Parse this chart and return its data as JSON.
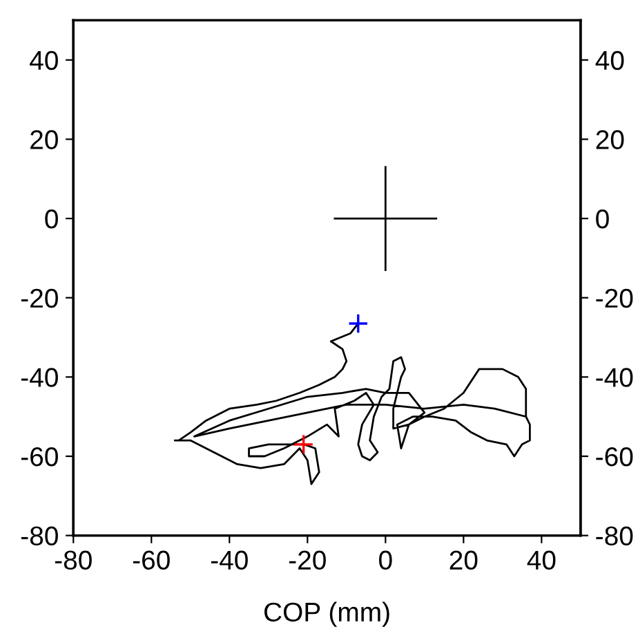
{
  "chart_data": {
    "type": "line",
    "xlabel": "COP (mm)",
    "xlim": [
      -80,
      50
    ],
    "ylim": [
      -80,
      50
    ],
    "y2lim": [
      -80,
      50
    ],
    "xticks": [
      -80,
      -60,
      -40,
      -20,
      0,
      20,
      40
    ],
    "yticks": [
      -80,
      -60,
      -40,
      -20,
      0,
      20,
      40
    ],
    "y2ticks": [
      -80,
      -60,
      -40,
      -20,
      0,
      20,
      40
    ],
    "grid": false,
    "series": [
      {
        "color": "#000000",
        "marker": "none",
        "line_style": "solid",
        "x": [
          -7,
          -9,
          -14,
          -11,
          -10,
          -11,
          -13,
          -17,
          -22,
          -28,
          -33,
          -40,
          -46,
          -50,
          -53,
          -54,
          -50,
          -44,
          -38,
          -32,
          -26,
          -22,
          -20,
          -19,
          -17,
          -18,
          -21,
          -24,
          -30,
          -35,
          -35,
          -31,
          -26,
          -20,
          -15,
          -12,
          -13,
          -8,
          -5,
          -3,
          -6,
          -7,
          -6,
          -4,
          -2,
          -4,
          -3,
          -1,
          1,
          2,
          4,
          5,
          4,
          3,
          2,
          2,
          6,
          10,
          15,
          20,
          24,
          30,
          34,
          36,
          36,
          37,
          37,
          35,
          33,
          31,
          26,
          22,
          18,
          12,
          7,
          3,
          4,
          6,
          10,
          6,
          0,
          -5,
          -11,
          -20,
          -30,
          -40,
          -49,
          -40,
          -30,
          -20,
          -10,
          0,
          10,
          20,
          28,
          36
        ],
        "values": [
          -26.5,
          -29,
          -31,
          -33,
          -36,
          -38,
          -40,
          -42,
          -44,
          -46,
          -47,
          -48,
          -51,
          -54,
          -56,
          -56,
          -56,
          -59,
          -62,
          -63,
          -62,
          -58,
          -61,
          -67,
          -64,
          -58,
          -57,
          -57,
          -57,
          -58,
          -60,
          -60,
          -58,
          -55,
          -52,
          -55,
          -48,
          -46,
          -44,
          -47,
          -52,
          -57,
          -60,
          -61,
          -59,
          -56,
          -50,
          -45,
          -43,
          -36,
          -35,
          -38,
          -40,
          -44,
          -48,
          -53,
          -52,
          -50,
          -48,
          -44,
          -38,
          -38,
          -40,
          -43,
          -50,
          -52,
          -56,
          -57,
          -60,
          -57,
          -56,
          -54,
          -51,
          -50,
          -50,
          -52,
          -58,
          -52,
          -49,
          -44,
          -44,
          -43,
          -44,
          -45,
          -48,
          -51,
          -55,
          -53,
          -51,
          -49,
          -47,
          -47,
          -48,
          -47,
          -48,
          -50
        ]
      },
      {
        "color": "#000000",
        "marker": "none",
        "line_style": "solid",
        "x": [
          -13,
          13
        ],
        "values": [
          0,
          0
        ]
      },
      {
        "color": "#000000",
        "marker": "none",
        "line_style": "solid",
        "x": [
          0,
          0
        ],
        "values": [
          13,
          -13
        ]
      },
      {
        "type": "scatter",
        "color": "#0000ff",
        "marker": "cross",
        "x": [
          -7
        ],
        "values": [
          -26.5
        ]
      },
      {
        "type": "scatter",
        "color": "#ff0000",
        "marker": "cross",
        "x": [
          -21
        ],
        "values": [
          -57
        ]
      }
    ]
  }
}
